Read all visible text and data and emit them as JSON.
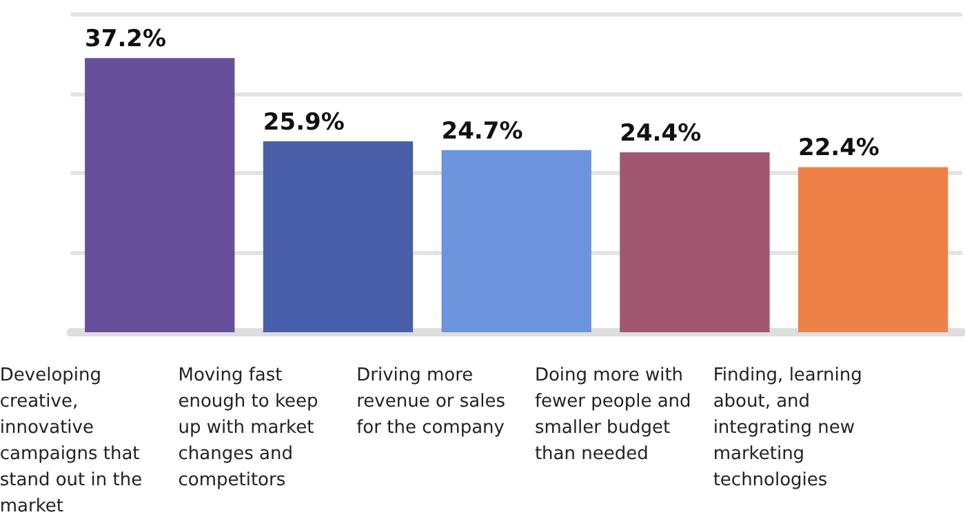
{
  "chart_data": {
    "type": "bar",
    "categories": [
      "Developing creative, innovative campaigns that stand out in the market",
      "Moving fast enough to keep up with market changes and competitors",
      "Driving more revenue or sales for the company",
      "Doing more with fewer people and smaller budget than needed",
      "Finding, learning about, and integrating new marketing technologies"
    ],
    "values": [
      37.2,
      25.9,
      24.7,
      24.4,
      22.4
    ],
    "value_labels": [
      "37.2%",
      "25.9%",
      "24.7%",
      "24.4%",
      "22.4%"
    ],
    "colors": [
      "#674f9b",
      "#4a5fa9",
      "#6b94dd",
      "#a0566f",
      "#ee8148"
    ],
    "ylim": [
      0,
      43.2
    ],
    "yticks": [
      {
        "value": 0,
        "label": null
      },
      {
        "value": 10.8,
        "label": null
      },
      {
        "value": 21.6,
        "label": null
      },
      {
        "value": 32.4,
        "label": null
      }
    ],
    "grid": "y"
  }
}
